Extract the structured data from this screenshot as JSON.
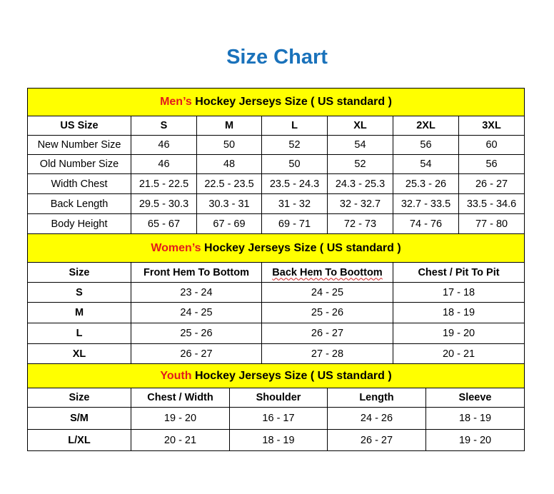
{
  "title": "Size Chart",
  "colors": {
    "title": "#1a72bb",
    "header_bg": "#ffff00",
    "header_accent": "#e31b1b"
  },
  "sections": [
    {
      "id": "men",
      "header_accent": "Men’s",
      "header_rest": " Hockey Jerseys Size ( US standard )",
      "columns": [
        "US Size",
        "S",
        "M",
        "L",
        "XL",
        "2XL",
        "3XL"
      ],
      "rows": [
        [
          "New Number Size",
          "46",
          "50",
          "52",
          "54",
          "56",
          "60"
        ],
        [
          "Old Number Size",
          "46",
          "48",
          "50",
          "52",
          "54",
          "56"
        ],
        [
          "Width Chest",
          "21.5 - 22.5",
          "22.5 - 23.5",
          "23.5 - 24.3",
          "24.3 - 25.3",
          "25.3 - 26",
          "26 - 27"
        ],
        [
          "Back Length",
          "29.5 - 30.3",
          "30.3 - 31",
          "31 - 32",
          "32 - 32.7",
          "32.7 - 33.5",
          "33.5 - 34.6"
        ],
        [
          "Body Height",
          "65 - 67",
          "67 - 69",
          "69 - 71",
          "72 - 73",
          "74 - 76",
          "77 - 80"
        ]
      ]
    },
    {
      "id": "women",
      "header_accent": "Women’s",
      "header_rest": " Hockey Jerseys Size ( US standard )",
      "columns": [
        "Size",
        "Front Hem To Bottom",
        "Back Hem To Boottom",
        "Chest / Pit To Pit"
      ],
      "rows": [
        [
          "S",
          "23 - 24",
          "24 - 25",
          "17 - 18"
        ],
        [
          "M",
          "24 - 25",
          "25 - 26",
          "18 - 19"
        ],
        [
          "L",
          "25 - 26",
          "26 - 27",
          "19 - 20"
        ],
        [
          "XL",
          "26 - 27",
          "27 - 28",
          "20 - 21"
        ]
      ]
    },
    {
      "id": "youth",
      "header_accent": "Youth",
      "header_rest": " Hockey Jerseys Size ( US standard )",
      "columns": [
        "Size",
        "Chest / Width",
        "Shoulder",
        "Length",
        "Sleeve"
      ],
      "rows": [
        [
          "S/M",
          "19 - 20",
          "16 - 17",
          "24 - 26",
          "18 - 19"
        ],
        [
          "L/XL",
          "20 - 21",
          "18 - 19",
          "26 - 27",
          "19 - 20"
        ]
      ]
    }
  ]
}
